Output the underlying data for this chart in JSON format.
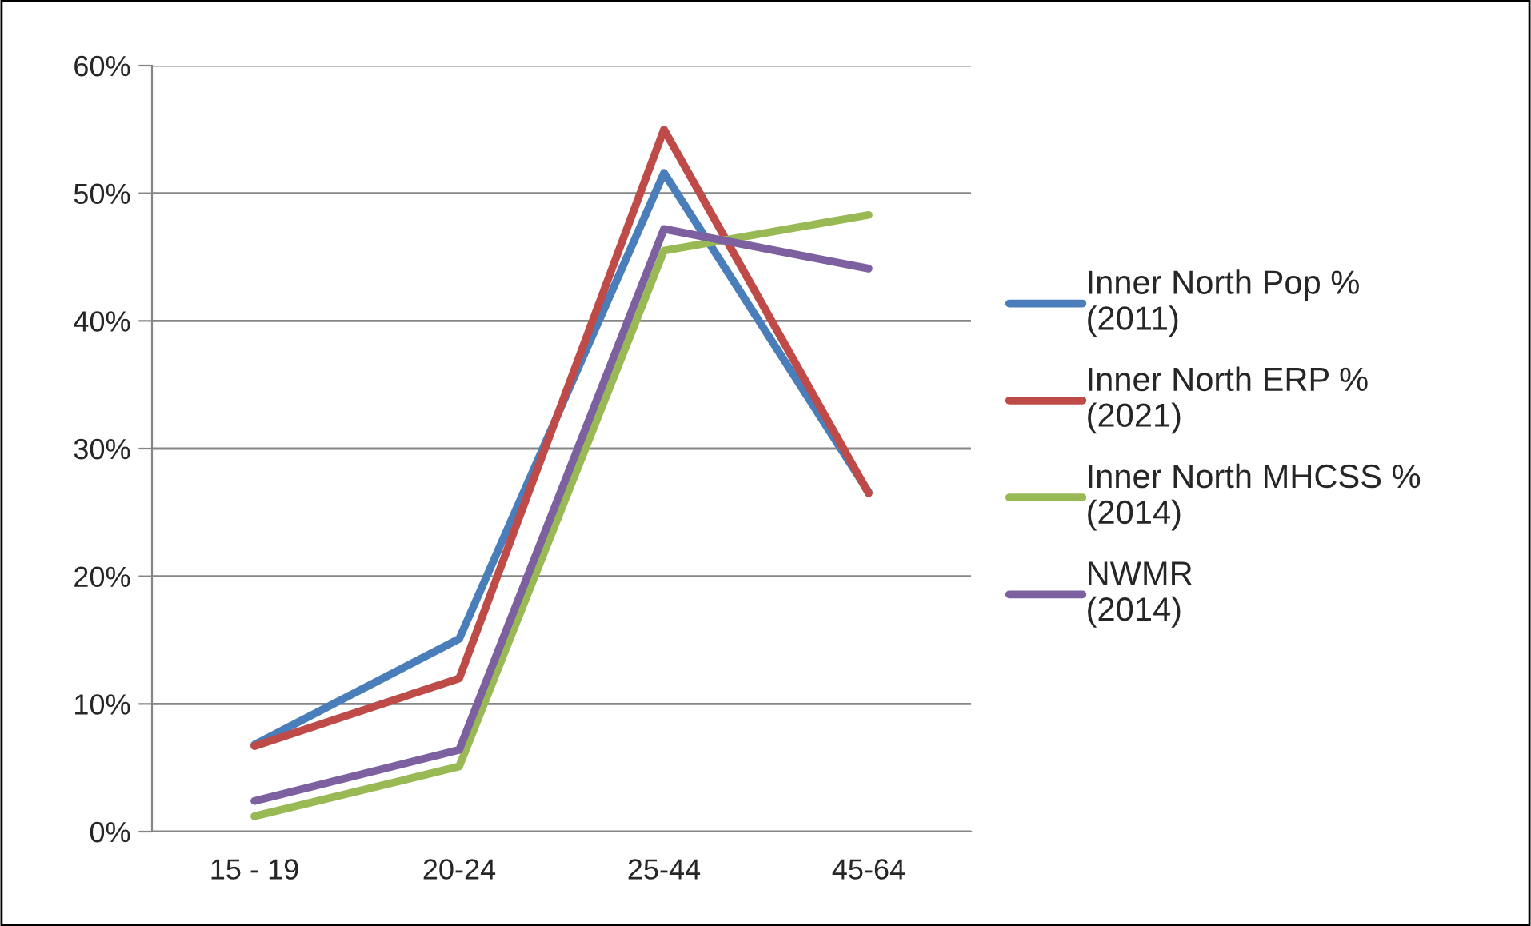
{
  "chart_data": {
    "type": "line",
    "categories": [
      "15 - 19",
      "20-24",
      "25-44",
      "45-64"
    ],
    "series": [
      {
        "name": "Inner North Pop % (2011)",
        "color": "#4a7ebb",
        "values": [
          6.8,
          15.1,
          51.6,
          26.6
        ]
      },
      {
        "name": "Inner North ERP % (2021)",
        "color": "#be4b48",
        "values": [
          6.7,
          12.0,
          55.0,
          26.5
        ]
      },
      {
        "name": "Inner North MHCSS % (2014)",
        "color": "#98b954",
        "values": [
          1.2,
          5.1,
          45.5,
          48.3
        ]
      },
      {
        "name": "NWMR (2014)",
        "color": "#7d60a0",
        "values": [
          2.4,
          6.4,
          47.2,
          44.1
        ]
      }
    ],
    "ylim": [
      0,
      60
    ],
    "yticks": [
      {
        "value": 0,
        "label": "0%"
      },
      {
        "value": 10,
        "label": "10%"
      },
      {
        "value": 20,
        "label": "20%"
      },
      {
        "value": 30,
        "label": "30%"
      },
      {
        "value": 40,
        "label": "40%"
      },
      {
        "value": 50,
        "label": "50%"
      },
      {
        "value": 60,
        "label": "60%"
      }
    ],
    "grid": "y",
    "legend": "right",
    "marker": "none",
    "line_style": "solid"
  }
}
